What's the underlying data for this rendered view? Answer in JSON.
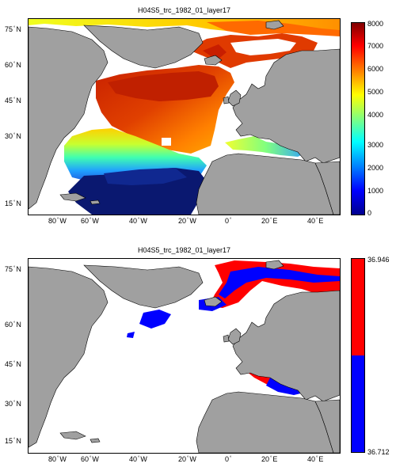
{
  "panels": [
    {
      "title": "H04S5_trc_1982_01_layer17",
      "y_ticks": [
        {
          "deg": "75",
          "hem": "N"
        },
        {
          "deg": "60",
          "hem": "N"
        },
        {
          "deg": "45",
          "hem": "N"
        },
        {
          "deg": "30",
          "hem": "N"
        },
        {
          "deg": "15",
          "hem": "N"
        }
      ],
      "x_ticks": [
        {
          "deg": "80",
          "hem": "W"
        },
        {
          "deg": "60",
          "hem": "W"
        },
        {
          "deg": "40",
          "hem": "W"
        },
        {
          "deg": "20",
          "hem": "W"
        },
        {
          "deg": "0",
          "hem": ""
        },
        {
          "deg": "20",
          "hem": "E"
        },
        {
          "deg": "40",
          "hem": "E"
        }
      ],
      "colorbar": {
        "type": "jet",
        "ticks": [
          "8000",
          "7000",
          "6000",
          "5000",
          "4000",
          "3000",
          "2000",
          "1000",
          "0"
        ]
      }
    },
    {
      "title": "H04S5_trc_1982_01_layer17",
      "y_ticks": [
        {
          "deg": "75",
          "hem": "N"
        },
        {
          "deg": "60",
          "hem": "N"
        },
        {
          "deg": "45",
          "hem": "N"
        },
        {
          "deg": "30",
          "hem": "N"
        },
        {
          "deg": "15",
          "hem": "N"
        }
      ],
      "x_ticks": [
        {
          "deg": "80",
          "hem": "W"
        },
        {
          "deg": "60",
          "hem": "W"
        },
        {
          "deg": "40",
          "hem": "W"
        },
        {
          "deg": "20",
          "hem": "W"
        },
        {
          "deg": "0",
          "hem": ""
        },
        {
          "deg": "20",
          "hem": "E"
        },
        {
          "deg": "40",
          "hem": "E"
        }
      ],
      "colorbar": {
        "type": "two-tone",
        "colors": [
          "#ff0000",
          "#0000ff"
        ],
        "ticks": [
          "36.946",
          "36.712"
        ]
      }
    }
  ],
  "colors": {
    "land": "#a0a0a0",
    "ocean": "#ffffff",
    "high": "#ff0000",
    "low": "#0000ff"
  }
}
